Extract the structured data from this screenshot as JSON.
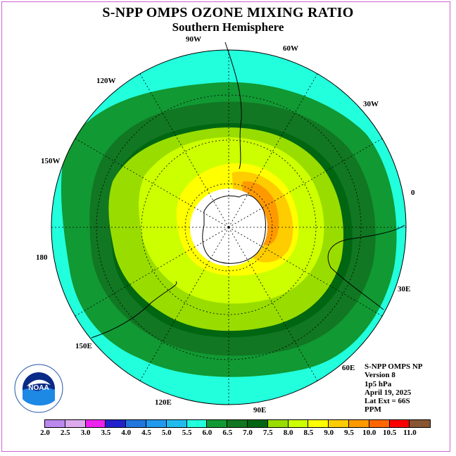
{
  "title": "S-NPP OMPS OZONE MIXING RATIO",
  "subtitle": "Southern Hemisphere",
  "longitude_labels": [
    "90W",
    "60W",
    "30W",
    "0",
    "30E",
    "60E",
    "90E",
    "120E",
    "150E",
    "180",
    "150W",
    "120W"
  ],
  "info": {
    "instrument": "S-NPP OMPS NP",
    "version": "Version 8",
    "level": "1p5 hPa",
    "date": "April 19, 2025",
    "lat_ext": "Lat Ext = 66S",
    "units": "PPM"
  },
  "colorbar": {
    "colors": [
      "#bb88ee",
      "#ddaaee",
      "#ee22ee",
      "#2222cc",
      "#2277dd",
      "#2299ee",
      "#22bbee",
      "#22ffdd",
      "#119933",
      "#117722",
      "#006611",
      "#99dd00",
      "#ccff00",
      "#ffff00",
      "#ffcc00",
      "#ff9900",
      "#ff6600",
      "#ff0000",
      "#885533"
    ],
    "tick_labels": [
      "2.0",
      "2.5",
      "3.0",
      "3.5",
      "4.0",
      "4.5",
      "5.0",
      "5.5",
      "6.0",
      "6.5",
      "7.0",
      "7.5",
      "8.0",
      "8.5",
      "9.0",
      "9.5",
      "10.0",
      "10.5",
      "11.0"
    ]
  },
  "logo_text": "NOAA",
  "logo_ring_text": "NATIONAL OCEANIC AND ATMOSPHERIC ADMINISTRATION · U.S. DEPARTMENT OF COMMERCE",
  "map": {
    "background_color": "#22ffdd",
    "center_color": "#ffffff"
  }
}
